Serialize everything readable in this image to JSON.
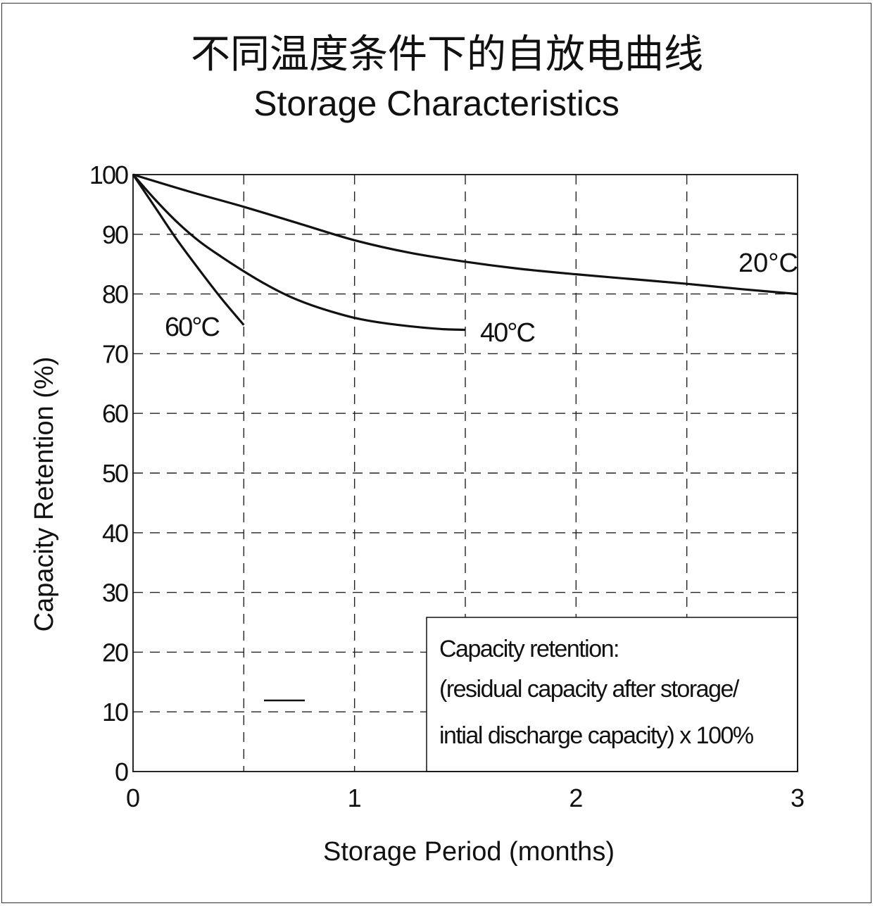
{
  "chart_data": {
    "type": "line",
    "title": "不同温度条件下的自放电曲线",
    "subtitle": "Storage Characteristics",
    "xlabel": "Storage Period (months)",
    "ylabel": "Capacity Retention (%)",
    "xlim": [
      0,
      3
    ],
    "ylim": [
      0,
      100
    ],
    "x_ticks": [
      "0",
      "1",
      "2",
      "3"
    ],
    "y_ticks": [
      "0",
      "10",
      "20",
      "30",
      "40",
      "50",
      "60",
      "70",
      "80",
      "90",
      "100"
    ],
    "x_grid": [
      0.5,
      1,
      1.5,
      2,
      2.5
    ],
    "y_grid": [
      10,
      20,
      30,
      40,
      50,
      60,
      70,
      80,
      90
    ],
    "grid": "dashed",
    "series": [
      {
        "name": "20°C",
        "x": [
          0,
          0.25,
          0.5,
          0.75,
          1.0,
          1.25,
          1.5,
          1.75,
          2.0,
          2.25,
          2.5,
          2.75,
          3.0
        ],
        "y": [
          100,
          97.2,
          94.6,
          91.8,
          89.0,
          86.9,
          85.4,
          84.2,
          83.3,
          82.5,
          81.7,
          80.8,
          80.0
        ]
      },
      {
        "name": "40°C",
        "x": [
          0,
          0.1,
          0.2,
          0.3,
          0.4,
          0.5,
          0.6,
          0.7,
          0.8,
          0.9,
          1.0,
          1.1,
          1.2,
          1.3,
          1.4,
          1.5
        ],
        "y": [
          100,
          95.8,
          92.0,
          88.8,
          86.2,
          83.8,
          81.6,
          79.7,
          78.2,
          77.0,
          76.0,
          75.3,
          74.8,
          74.4,
          74.1,
          74.0
        ]
      },
      {
        "name": "60°C",
        "x": [
          0,
          0.1,
          0.2,
          0.3,
          0.4,
          0.5
        ],
        "y": [
          100,
          94.5,
          89.0,
          84.0,
          79.2,
          74.8
        ]
      }
    ],
    "annotation": {
      "line1": "Capacity retention:",
      "line2": "(residual capacity after storage/",
      "line3": "intial discharge capacity) x 100%"
    }
  }
}
